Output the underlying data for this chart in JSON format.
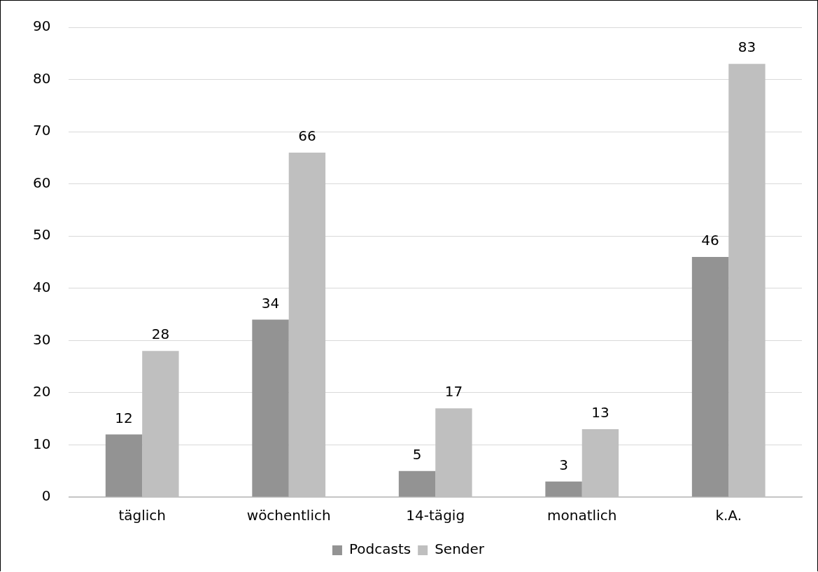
{
  "chart_data": {
    "type": "bar",
    "categories": [
      "täglich",
      "wöchentlich",
      "14-tägig",
      "monatlich",
      "k.A."
    ],
    "series": [
      {
        "name": "Podcasts",
        "color": "#939393",
        "values": [
          12,
          34,
          5,
          3,
          46
        ]
      },
      {
        "name": "Sender",
        "color": "#bfbfbf",
        "values": [
          28,
          66,
          17,
          13,
          83
        ]
      }
    ],
    "ylim": [
      0,
      90
    ],
    "yticks": [
      0,
      10,
      20,
      30,
      40,
      50,
      60,
      70,
      80,
      90
    ],
    "grid": "y",
    "legend": "bottom",
    "data_labels": true
  }
}
